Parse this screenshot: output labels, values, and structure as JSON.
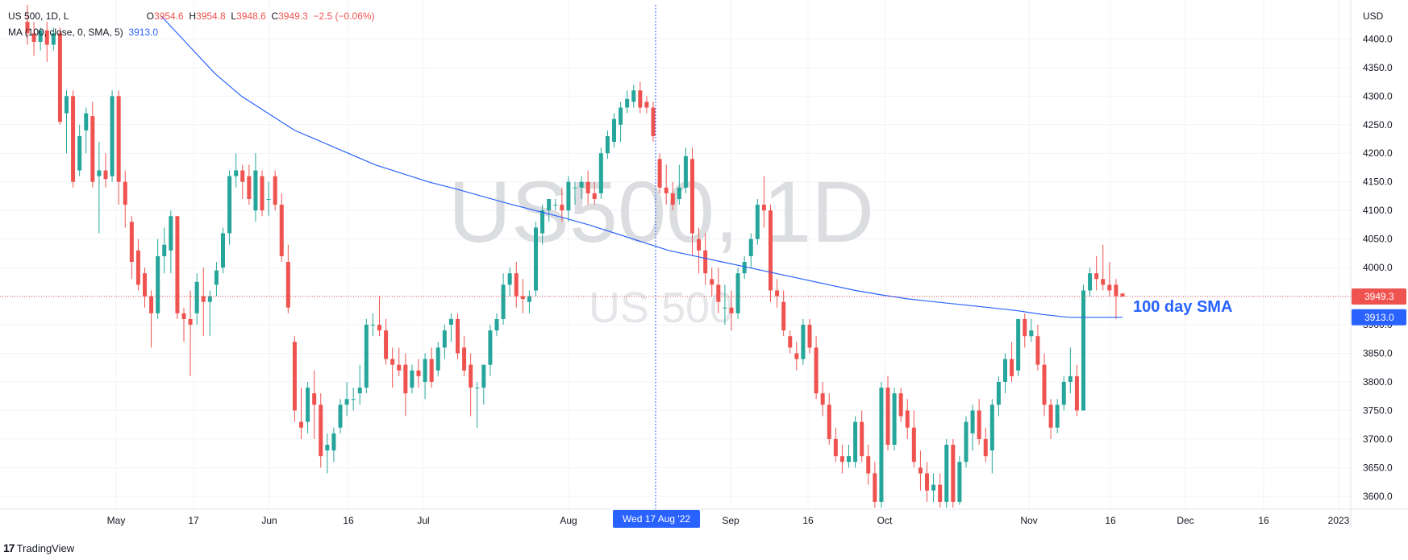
{
  "legend": {
    "symbol": "US 500, 1D, L",
    "o_label": "O",
    "o_value": "3954.6",
    "h_label": "H",
    "h_value": "3954.8",
    "l_label": "L",
    "l_value": "3948.6",
    "c_label": "C",
    "c_value": "3949.3",
    "change": "−2.5 (−0.06%)",
    "ma_label": "MA (100, close, 0, SMA, 5)",
    "ma_value": "3913.0"
  },
  "watermark": {
    "big": "US500, 1D",
    "small": "US 500"
  },
  "annotation": "100 day SMA",
  "currency": "USD",
  "crosshair_date": "Wed 17 Aug '22",
  "brand": {
    "logo": "17",
    "name": "TradingView"
  },
  "colors": {
    "up": "#26a69a",
    "down": "#ef5350",
    "ma": "#2962ff",
    "grid": "#f0f3fa",
    "axis_text": "#131722",
    "price_badge": "#ef5350",
    "ma_badge": "#2962ff"
  },
  "chart_data": {
    "type": "candlestick",
    "y_axis": {
      "ticks": [
        3600,
        3650,
        3700,
        3750,
        3800,
        3850,
        3900,
        3950,
        4000,
        4050,
        4100,
        4150,
        4200,
        4250,
        4300,
        4350,
        4400
      ]
    },
    "x_axis": {
      "labels": [
        "May",
        "17",
        "Jun",
        "16",
        "Jul",
        "Aug",
        "Sep",
        "16",
        "Oct",
        "Nov",
        "16",
        "Dec",
        "16",
        "2023"
      ]
    },
    "last_price": 3949.3,
    "ma_last": 3913.0,
    "candles": [
      {
        "o": 4430,
        "h": 4460,
        "l": 4390,
        "c": 4410
      },
      {
        "o": 4410,
        "h": 4430,
        "l": 4370,
        "c": 4395
      },
      {
        "o": 4395,
        "h": 4420,
        "l": 4380,
        "c": 4415
      },
      {
        "o": 4415,
        "h": 4430,
        "l": 4360,
        "c": 4390
      },
      {
        "o": 4390,
        "h": 4420,
        "l": 4380,
        "c": 4410
      },
      {
        "o": 4410,
        "h": 4420,
        "l": 4250,
        "c": 4255
      },
      {
        "o": 4270,
        "h": 4310,
        "l": 4200,
        "c": 4300
      },
      {
        "o": 4300,
        "h": 4310,
        "l": 4140,
        "c": 4150
      },
      {
        "o": 4170,
        "h": 4250,
        "l": 4160,
        "c": 4230
      },
      {
        "o": 4240,
        "h": 4280,
        "l": 4200,
        "c": 4270
      },
      {
        "o": 4265,
        "h": 4290,
        "l": 4140,
        "c": 4150
      },
      {
        "o": 4160,
        "h": 4220,
        "l": 4060,
        "c": 4170
      },
      {
        "o": 4170,
        "h": 4200,
        "l": 4140,
        "c": 4155
      },
      {
        "o": 4160,
        "h": 4310,
        "l": 4150,
        "c": 4300
      },
      {
        "o": 4300,
        "h": 4310,
        "l": 4110,
        "c": 4150
      },
      {
        "o": 4150,
        "h": 4170,
        "l": 4070,
        "c": 4110
      },
      {
        "o": 4080,
        "h": 4090,
        "l": 3980,
        "c": 4010
      },
      {
        "o": 4030,
        "h": 4050,
        "l": 3960,
        "c": 3970
      },
      {
        "o": 3990,
        "h": 4000,
        "l": 3930,
        "c": 3950
      },
      {
        "o": 3950,
        "h": 3960,
        "l": 3860,
        "c": 3920
      },
      {
        "o": 3920,
        "h": 4050,
        "l": 3910,
        "c": 4020
      },
      {
        "o": 4020,
        "h": 4070,
        "l": 3990,
        "c": 4040
      },
      {
        "o": 4030,
        "h": 4100,
        "l": 3990,
        "c": 4090
      },
      {
        "o": 4090,
        "h": 4090,
        "l": 3910,
        "c": 3920
      },
      {
        "o": 3920,
        "h": 3930,
        "l": 3870,
        "c": 3910
      },
      {
        "o": 3910,
        "h": 3960,
        "l": 3810,
        "c": 3900
      },
      {
        "o": 3920,
        "h": 3990,
        "l": 3900,
        "c": 3975
      },
      {
        "o": 3950,
        "h": 4000,
        "l": 3880,
        "c": 3940
      },
      {
        "o": 3940,
        "h": 3960,
        "l": 3880,
        "c": 3950
      },
      {
        "o": 3970,
        "h": 4010,
        "l": 3950,
        "c": 3995
      },
      {
        "o": 4000,
        "h": 4070,
        "l": 3990,
        "c": 4060
      },
      {
        "o": 4060,
        "h": 4170,
        "l": 4040,
        "c": 4160
      },
      {
        "o": 4160,
        "h": 4200,
        "l": 4140,
        "c": 4170
      },
      {
        "o": 4170,
        "h": 4180,
        "l": 4120,
        "c": 4150
      },
      {
        "o": 4160,
        "h": 4180,
        "l": 4110,
        "c": 4120
      },
      {
        "o": 4100,
        "h": 4200,
        "l": 4080,
        "c": 4170
      },
      {
        "o": 4160,
        "h": 4170,
        "l": 4090,
        "c": 4100
      },
      {
        "o": 4120,
        "h": 4150,
        "l": 4090,
        "c": 4120
      },
      {
        "o": 4160,
        "h": 4170,
        "l": 4100,
        "c": 4110
      },
      {
        "o": 4110,
        "h": 4130,
        "l": 4010,
        "c": 4020
      },
      {
        "o": 4010,
        "h": 4040,
        "l": 3920,
        "c": 3930
      },
      {
        "o": 3870,
        "h": 3880,
        "l": 3730,
        "c": 3750
      },
      {
        "o": 3730,
        "h": 3790,
        "l": 3700,
        "c": 3720
      },
      {
        "o": 3730,
        "h": 3800,
        "l": 3710,
        "c": 3790
      },
      {
        "o": 3780,
        "h": 3820,
        "l": 3700,
        "c": 3760
      },
      {
        "o": 3760,
        "h": 3780,
        "l": 3650,
        "c": 3670
      },
      {
        "o": 3680,
        "h": 3710,
        "l": 3640,
        "c": 3690
      },
      {
        "o": 3680,
        "h": 3720,
        "l": 3660,
        "c": 3710
      },
      {
        "o": 3720,
        "h": 3770,
        "l": 3710,
        "c": 3760
      },
      {
        "o": 3760,
        "h": 3800,
        "l": 3740,
        "c": 3770
      },
      {
        "o": 3770,
        "h": 3790,
        "l": 3750,
        "c": 3770
      },
      {
        "o": 3780,
        "h": 3830,
        "l": 3760,
        "c": 3790
      },
      {
        "o": 3790,
        "h": 3910,
        "l": 3780,
        "c": 3900
      },
      {
        "o": 3900,
        "h": 3920,
        "l": 3880,
        "c": 3900
      },
      {
        "o": 3900,
        "h": 3950,
        "l": 3880,
        "c": 3890
      },
      {
        "o": 3890,
        "h": 3910,
        "l": 3830,
        "c": 3840
      },
      {
        "o": 3840,
        "h": 3860,
        "l": 3790,
        "c": 3830
      },
      {
        "o": 3830,
        "h": 3860,
        "l": 3810,
        "c": 3820
      },
      {
        "o": 3830,
        "h": 3850,
        "l": 3740,
        "c": 3780
      },
      {
        "o": 3790,
        "h": 3830,
        "l": 3780,
        "c": 3820
      },
      {
        "o": 3820,
        "h": 3840,
        "l": 3790,
        "c": 3810
      },
      {
        "o": 3800,
        "h": 3850,
        "l": 3770,
        "c": 3840
      },
      {
        "o": 3840,
        "h": 3860,
        "l": 3790,
        "c": 3800
      },
      {
        "o": 3820,
        "h": 3870,
        "l": 3810,
        "c": 3860
      },
      {
        "o": 3860,
        "h": 3900,
        "l": 3840,
        "c": 3890
      },
      {
        "o": 3900,
        "h": 3920,
        "l": 3870,
        "c": 3910
      },
      {
        "o": 3910,
        "h": 3920,
        "l": 3840,
        "c": 3850
      },
      {
        "o": 3860,
        "h": 3880,
        "l": 3810,
        "c": 3820
      },
      {
        "o": 3830,
        "h": 3850,
        "l": 3740,
        "c": 3790
      },
      {
        "o": 3790,
        "h": 3800,
        "l": 3720,
        "c": 3790
      },
      {
        "o": 3790,
        "h": 3830,
        "l": 3760,
        "c": 3830
      },
      {
        "o": 3830,
        "h": 3900,
        "l": 3810,
        "c": 3890
      },
      {
        "o": 3890,
        "h": 3920,
        "l": 3880,
        "c": 3910
      },
      {
        "o": 3910,
        "h": 3990,
        "l": 3900,
        "c": 3970
      },
      {
        "o": 3970,
        "h": 4000,
        "l": 3950,
        "c": 3990
      },
      {
        "o": 3990,
        "h": 4010,
        "l": 3930,
        "c": 3950
      },
      {
        "o": 3950,
        "h": 3980,
        "l": 3920,
        "c": 3945
      },
      {
        "o": 3940,
        "h": 3960,
        "l": 3920,
        "c": 3950
      },
      {
        "o": 3960,
        "h": 4080,
        "l": 3950,
        "c": 4070
      },
      {
        "o": 4060,
        "h": 4110,
        "l": 4040,
        "c": 4100
      },
      {
        "o": 4100,
        "h": 4120,
        "l": 4080,
        "c": 4120
      },
      {
        "o": 4110,
        "h": 4120,
        "l": 4100,
        "c": 4110
      },
      {
        "o": 4110,
        "h": 4140,
        "l": 4080,
        "c": 4100
      },
      {
        "o": 4100,
        "h": 4160,
        "l": 4080,
        "c": 4150
      },
      {
        "o": 4140,
        "h": 4150,
        "l": 4110,
        "c": 4140
      },
      {
        "o": 4140,
        "h": 4160,
        "l": 4120,
        "c": 4150
      },
      {
        "o": 4150,
        "h": 4170,
        "l": 4110,
        "c": 4130
      },
      {
        "o": 4130,
        "h": 4150,
        "l": 4110,
        "c": 4120
      },
      {
        "o": 4130,
        "h": 4210,
        "l": 4120,
        "c": 4200
      },
      {
        "o": 4200,
        "h": 4240,
        "l": 4190,
        "c": 4230
      },
      {
        "o": 4220,
        "h": 4270,
        "l": 4210,
        "c": 4260
      },
      {
        "o": 4250,
        "h": 4290,
        "l": 4220,
        "c": 4280
      },
      {
        "o": 4280,
        "h": 4310,
        "l": 4270,
        "c": 4295
      },
      {
        "o": 4290,
        "h": 4320,
        "l": 4280,
        "c": 4310
      },
      {
        "o": 4310,
        "h": 4325,
        "l": 4270,
        "c": 4280
      },
      {
        "o": 4290,
        "h": 4300,
        "l": 4270,
        "c": 4280
      },
      {
        "o": 4280,
        "h": 4290,
        "l": 4220,
        "c": 4230
      },
      {
        "o": 4190,
        "h": 4200,
        "l": 4130,
        "c": 4140
      },
      {
        "o": 4140,
        "h": 4180,
        "l": 4110,
        "c": 4130
      },
      {
        "o": 4130,
        "h": 4150,
        "l": 4100,
        "c": 4110
      },
      {
        "o": 4120,
        "h": 4180,
        "l": 4110,
        "c": 4140
      },
      {
        "o": 4140,
        "h": 4210,
        "l": 4130,
        "c": 4195
      },
      {
        "o": 4190,
        "h": 4210,
        "l": 4020,
        "c": 4060
      },
      {
        "o": 4050,
        "h": 4070,
        "l": 3990,
        "c": 4030
      },
      {
        "o": 4030,
        "h": 4060,
        "l": 3970,
        "c": 3990
      },
      {
        "o": 3980,
        "h": 4000,
        "l": 3950,
        "c": 3970
      },
      {
        "o": 3970,
        "h": 4000,
        "l": 3920,
        "c": 3940
      },
      {
        "o": 3930,
        "h": 3970,
        "l": 3900,
        "c": 3930
      },
      {
        "o": 3930,
        "h": 3960,
        "l": 3890,
        "c": 3920
      },
      {
        "o": 3920,
        "h": 4000,
        "l": 3910,
        "c": 3990
      },
      {
        "o": 3990,
        "h": 4020,
        "l": 3980,
        "c": 4010
      },
      {
        "o": 4020,
        "h": 4060,
        "l": 4000,
        "c": 4050
      },
      {
        "o": 4050,
        "h": 4120,
        "l": 4040,
        "c": 4110
      },
      {
        "o": 4110,
        "h": 4160,
        "l": 4070,
        "c": 4100
      },
      {
        "o": 4100,
        "h": 4110,
        "l": 3940,
        "c": 3960
      },
      {
        "o": 3960,
        "h": 3980,
        "l": 3930,
        "c": 3950
      },
      {
        "o": 3940,
        "h": 3960,
        "l": 3880,
        "c": 3890
      },
      {
        "o": 3880,
        "h": 3890,
        "l": 3850,
        "c": 3860
      },
      {
        "o": 3850,
        "h": 3870,
        "l": 3820,
        "c": 3840
      },
      {
        "o": 3840,
        "h": 3910,
        "l": 3830,
        "c": 3900
      },
      {
        "o": 3900,
        "h": 3910,
        "l": 3850,
        "c": 3860
      },
      {
        "o": 3860,
        "h": 3880,
        "l": 3770,
        "c": 3780
      },
      {
        "o": 3780,
        "h": 3800,
        "l": 3740,
        "c": 3760
      },
      {
        "o": 3760,
        "h": 3780,
        "l": 3690,
        "c": 3700
      },
      {
        "o": 3700,
        "h": 3720,
        "l": 3660,
        "c": 3670
      },
      {
        "o": 3670,
        "h": 3690,
        "l": 3640,
        "c": 3660
      },
      {
        "o": 3660,
        "h": 3690,
        "l": 3650,
        "c": 3670
      },
      {
        "o": 3660,
        "h": 3740,
        "l": 3650,
        "c": 3730
      },
      {
        "o": 3730,
        "h": 3750,
        "l": 3660,
        "c": 3670
      },
      {
        "o": 3670,
        "h": 3690,
        "l": 3620,
        "c": 3640
      },
      {
        "o": 3640,
        "h": 3660,
        "l": 3580,
        "c": 3590
      },
      {
        "o": 3590,
        "h": 3800,
        "l": 3580,
        "c": 3790
      },
      {
        "o": 3790,
        "h": 3810,
        "l": 3680,
        "c": 3690
      },
      {
        "o": 3690,
        "h": 3790,
        "l": 3680,
        "c": 3780
      },
      {
        "o": 3780,
        "h": 3790,
        "l": 3730,
        "c": 3740
      },
      {
        "o": 3750,
        "h": 3770,
        "l": 3700,
        "c": 3720
      },
      {
        "o": 3720,
        "h": 3750,
        "l": 3650,
        "c": 3660
      },
      {
        "o": 3650,
        "h": 3680,
        "l": 3610,
        "c": 3640
      },
      {
        "o": 3640,
        "h": 3660,
        "l": 3590,
        "c": 3610
      },
      {
        "o": 3610,
        "h": 3640,
        "l": 3590,
        "c": 3620
      },
      {
        "o": 3620,
        "h": 3640,
        "l": 3580,
        "c": 3590
      },
      {
        "o": 3590,
        "h": 3700,
        "l": 3580,
        "c": 3690
      },
      {
        "o": 3690,
        "h": 3700,
        "l": 3580,
        "c": 3590
      },
      {
        "o": 3590,
        "h": 3670,
        "l": 3585,
        "c": 3660
      },
      {
        "o": 3660,
        "h": 3740,
        "l": 3650,
        "c": 3730
      },
      {
        "o": 3710,
        "h": 3760,
        "l": 3680,
        "c": 3750
      },
      {
        "o": 3750,
        "h": 3770,
        "l": 3690,
        "c": 3700
      },
      {
        "o": 3700,
        "h": 3720,
        "l": 3660,
        "c": 3670
      },
      {
        "o": 3680,
        "h": 3770,
        "l": 3640,
        "c": 3760
      },
      {
        "o": 3760,
        "h": 3810,
        "l": 3740,
        "c": 3800
      },
      {
        "o": 3800,
        "h": 3850,
        "l": 3780,
        "c": 3840
      },
      {
        "o": 3840,
        "h": 3870,
        "l": 3800,
        "c": 3810
      },
      {
        "o": 3820,
        "h": 3910,
        "l": 3810,
        "c": 3910
      },
      {
        "o": 3910,
        "h": 3920,
        "l": 3860,
        "c": 3880
      },
      {
        "o": 3880,
        "h": 3910,
        "l": 3870,
        "c": 3890
      },
      {
        "o": 3880,
        "h": 3900,
        "l": 3820,
        "c": 3830
      },
      {
        "o": 3830,
        "h": 3850,
        "l": 3740,
        "c": 3760
      },
      {
        "o": 3760,
        "h": 3770,
        "l": 3700,
        "c": 3720
      },
      {
        "o": 3720,
        "h": 3770,
        "l": 3710,
        "c": 3760
      },
      {
        "o": 3760,
        "h": 3810,
        "l": 3750,
        "c": 3800
      },
      {
        "o": 3800,
        "h": 3860,
        "l": 3780,
        "c": 3810
      },
      {
        "o": 3810,
        "h": 3830,
        "l": 3740,
        "c": 3750
      },
      {
        "o": 3750,
        "h": 3970,
        "l": 3750,
        "c": 3960
      },
      {
        "o": 3960,
        "h": 4000,
        "l": 3950,
        "c": 3990
      },
      {
        "o": 3990,
        "h": 4020,
        "l": 3960,
        "c": 3980
      },
      {
        "o": 3980,
        "h": 4040,
        "l": 3960,
        "c": 3970
      },
      {
        "o": 3970,
        "h": 4010,
        "l": 3950,
        "c": 3960
      },
      {
        "o": 3970,
        "h": 3980,
        "l": 3910,
        "c": 3950
      },
      {
        "o": 3954.6,
        "h": 3954.8,
        "l": 3948.6,
        "c": 3949.3
      }
    ],
    "ma_series": [
      4440,
      4390,
      4340,
      4300,
      4270,
      4240,
      4220,
      4200,
      4180,
      4165,
      4150,
      4138,
      4125,
      4112,
      4100,
      4088,
      4075,
      4060,
      4045,
      4030,
      4020,
      4010,
      4000,
      3990,
      3980,
      3970,
      3960,
      3952,
      3945,
      3940,
      3935,
      3930,
      3925,
      3918,
      3913,
      3913,
      3913
    ]
  }
}
